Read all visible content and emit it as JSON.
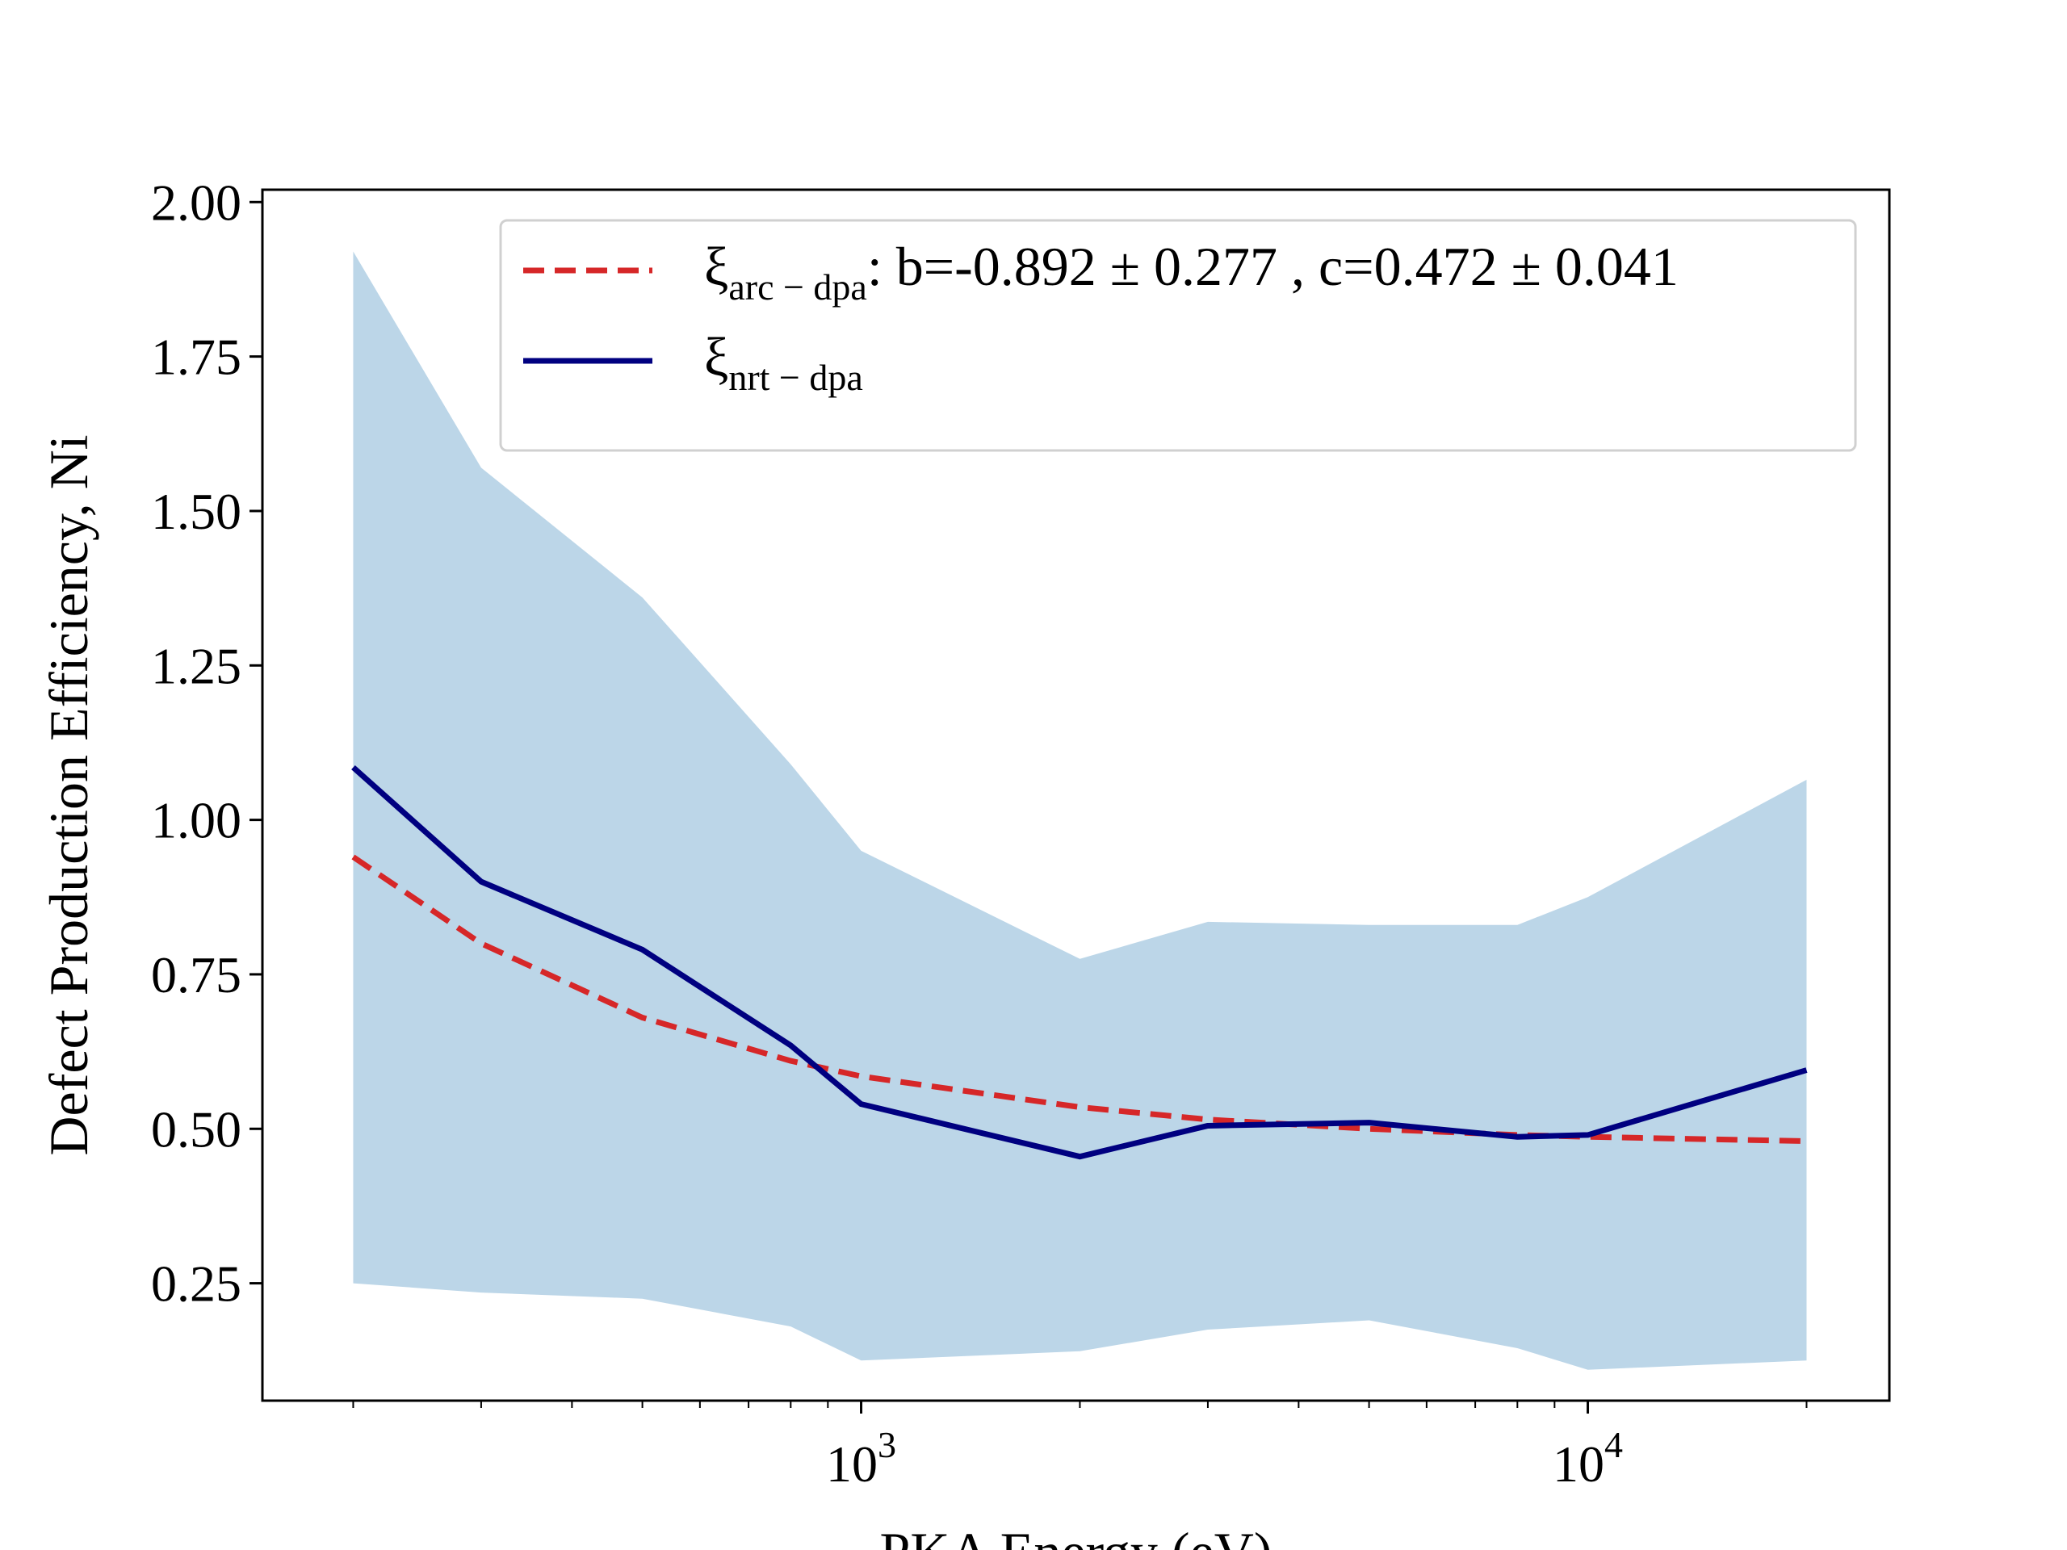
{
  "chart_data": {
    "type": "line",
    "title": "",
    "xlabel": "PKA Energy (eV)",
    "ylabel": "Defect Production Efficiency, Ni",
    "x_scale": "log",
    "xlim": [
      150,
      26000
    ],
    "ylim": [
      0.06,
      2.02
    ],
    "y_ticks": [
      "2.00",
      "1.75",
      "1.50",
      "1.25",
      "1.00",
      "0.75",
      "0.50",
      "0.25"
    ],
    "x_ticks": [
      {
        "base": "10",
        "exp": "3",
        "value": 1000
      },
      {
        "base": "10",
        "exp": "4",
        "value": 10000
      }
    ],
    "grid": false,
    "legend_position": "top-right",
    "x": [
      200,
      300,
      500,
      800,
      1000,
      2000,
      3000,
      5000,
      8000,
      10000,
      20000
    ],
    "series": [
      {
        "name_symbol": "ξ",
        "name_sub": "arc − dpa",
        "name_suffix": ": b=-0.892 ± 0.277 , c=0.472 ± 0.041",
        "style": "dashed",
        "color": "#d62728",
        "values": [
          0.94,
          0.8,
          0.68,
          0.61,
          0.585,
          0.535,
          0.515,
          0.5,
          0.49,
          0.487,
          0.48
        ]
      },
      {
        "name_symbol": "ξ",
        "name_sub": "nrt − dpa",
        "name_suffix": "",
        "style": "solid",
        "color": "#000080",
        "values": [
          1.085,
          0.9,
          0.79,
          0.635,
          0.54,
          0.455,
          0.505,
          0.51,
          0.487,
          0.49,
          0.595
        ]
      }
    ],
    "band": {
      "color": "#bcd6e8",
      "upper": [
        1.92,
        1.57,
        1.36,
        1.09,
        0.95,
        0.775,
        0.835,
        0.83,
        0.83,
        0.875,
        1.065
      ],
      "lower": [
        0.25,
        0.235,
        0.225,
        0.18,
        0.125,
        0.14,
        0.175,
        0.19,
        0.145,
        0.11,
        0.125
      ]
    }
  }
}
